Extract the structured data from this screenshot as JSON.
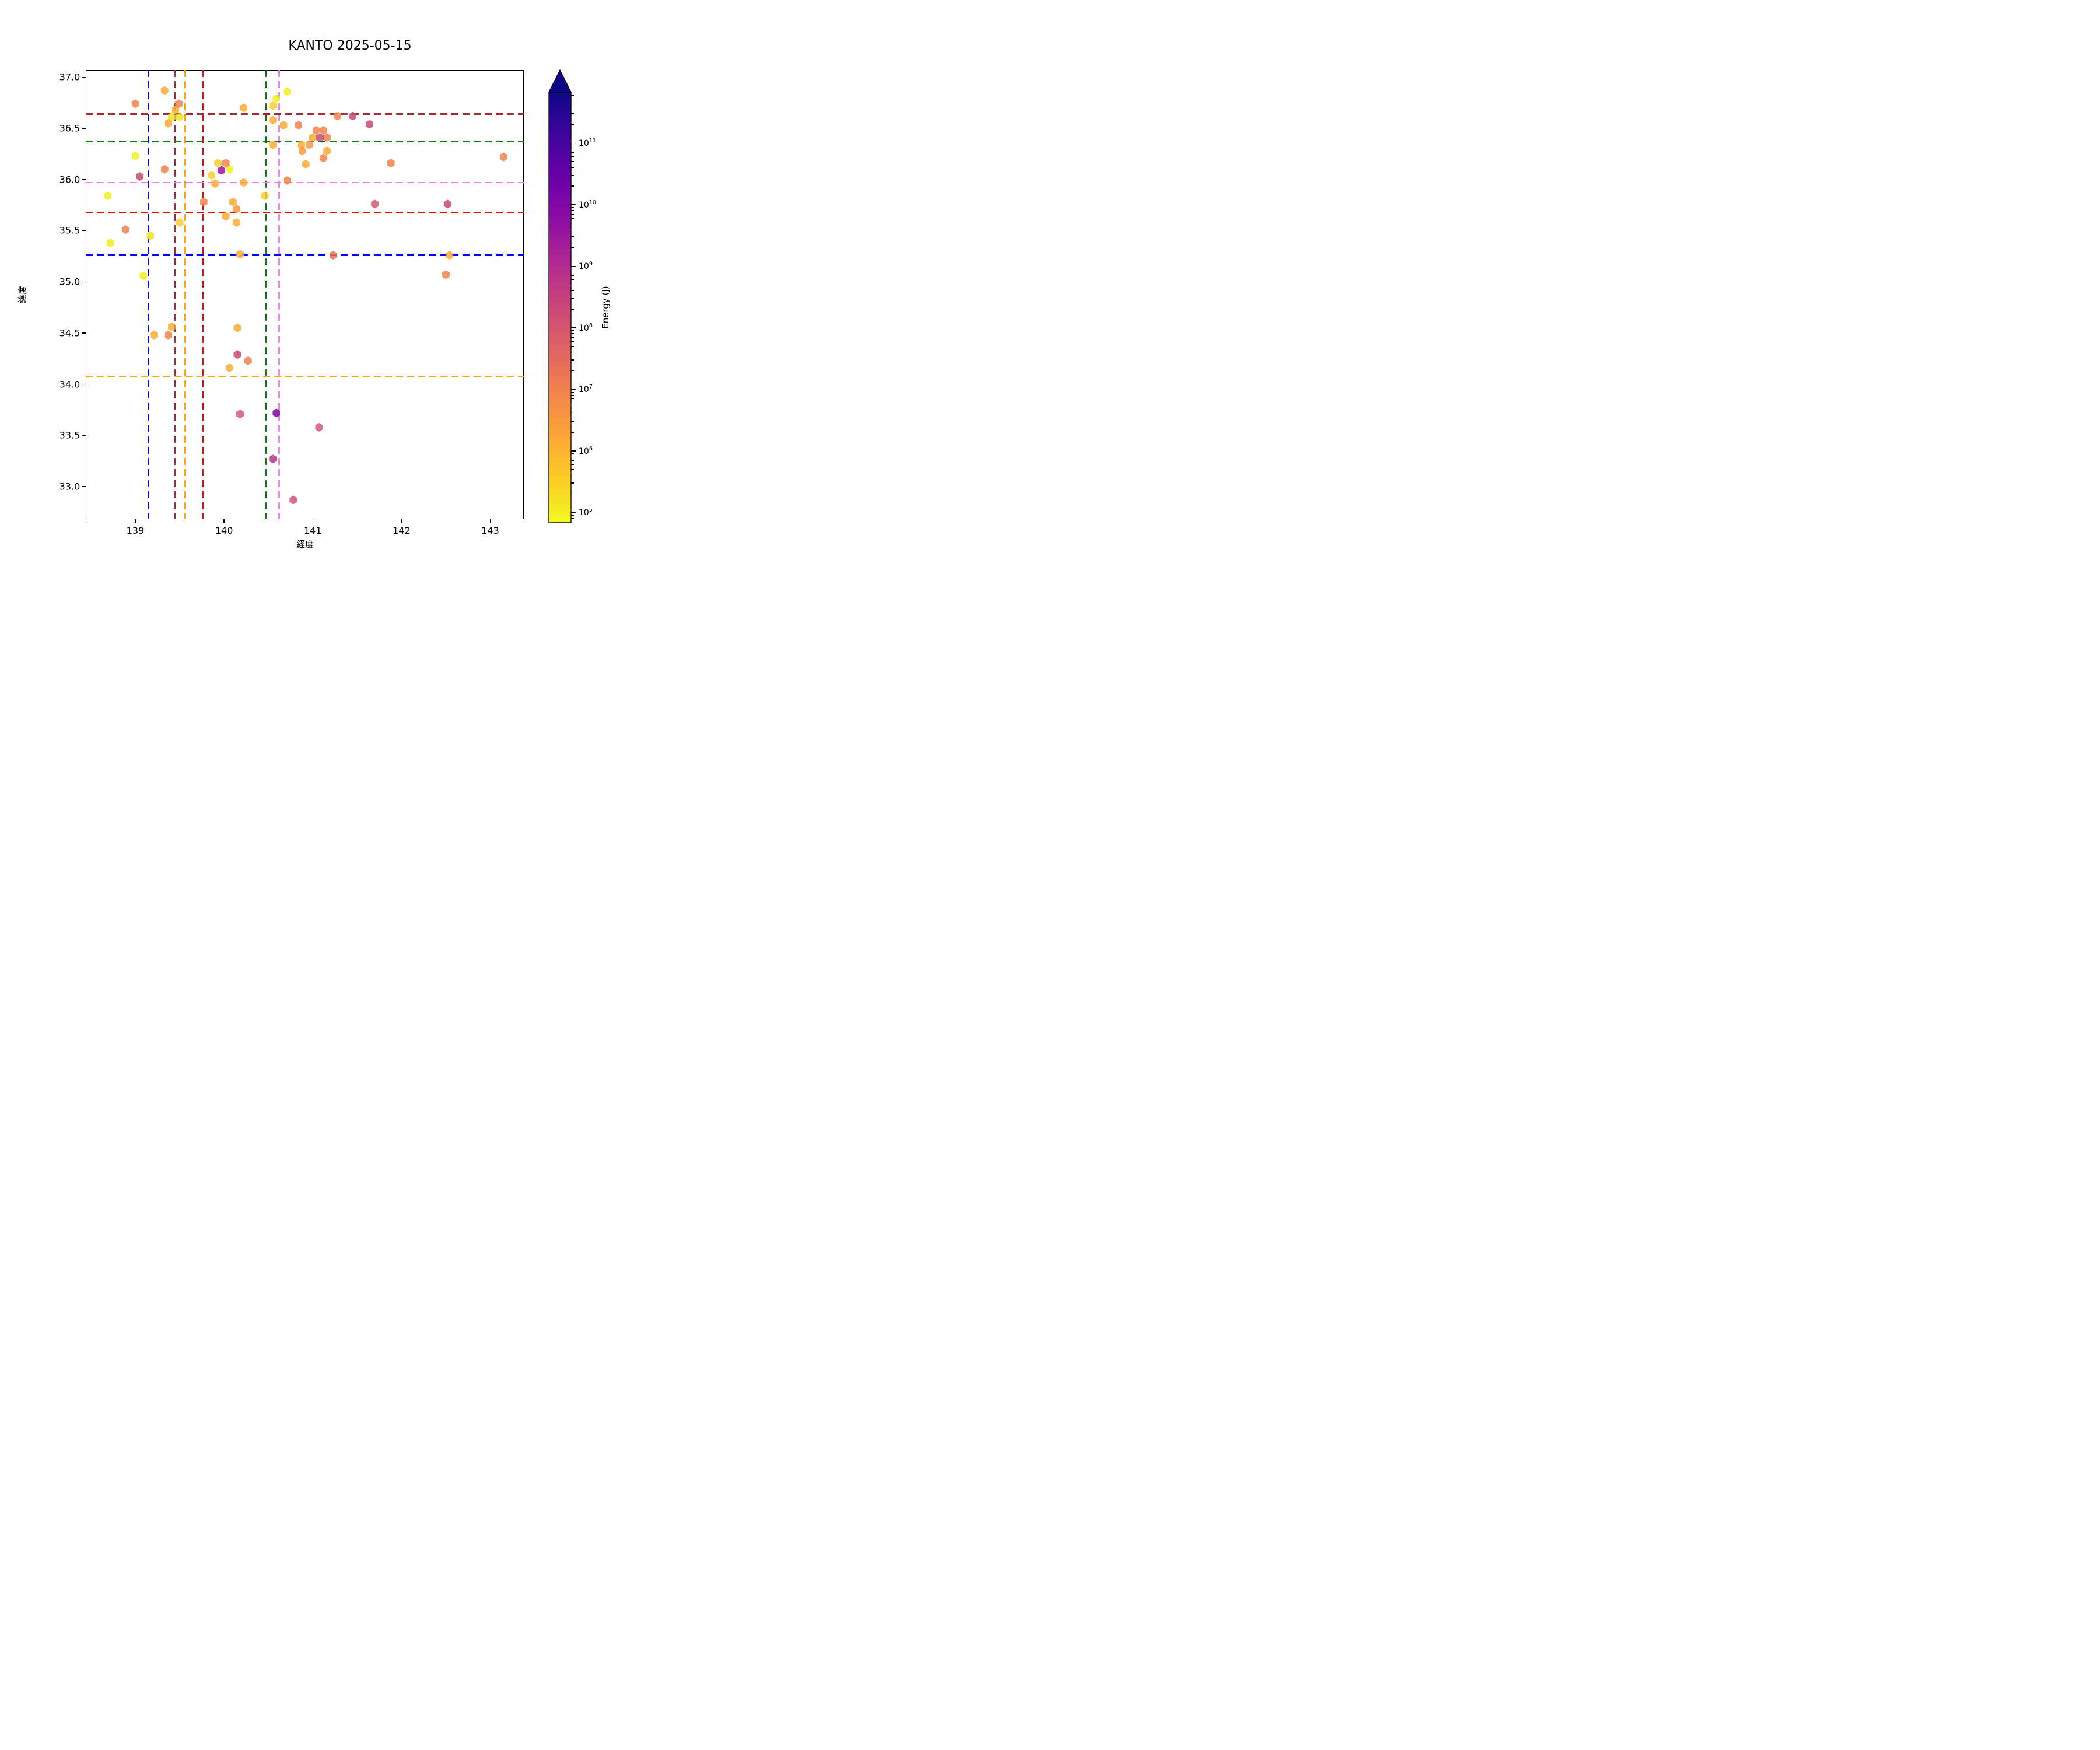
{
  "title": "KANTO 2025-05-15",
  "chart_data": {
    "type": "scatter",
    "marker": "hexagon",
    "title": "KANTO 2025-05-15",
    "xlabel": "経度",
    "ylabel": "緯度",
    "xlim": [
      138.443,
      143.38
    ],
    "ylim": [
      32.68,
      37.07
    ],
    "x_ticks": [
      139,
      140,
      141,
      142,
      143
    ],
    "x_tick_labels": [
      "139",
      "140",
      "141",
      "142",
      "143"
    ],
    "y_ticks": [
      37.0,
      36.5,
      36.0,
      35.5,
      35.0,
      34.5,
      34.0,
      33.5,
      33.0
    ],
    "y_tick_labels": [
      "37.0",
      "36.5",
      "36.0",
      "35.5",
      "35.0",
      "34.5",
      "34.0",
      "33.5",
      "33.0"
    ],
    "grid": false,
    "palette": {
      "yellow": "#f1ee1d",
      "yellow-deep": "#f2e320",
      "golden": "#f9cb32",
      "amber": "#fcab33",
      "orange-amber": "#f9993f",
      "orange": "#f0824c",
      "deep-orange": "#e8724f",
      "rose": "#d25873",
      "crimson": "#c64a72",
      "magenta": "#b43589",
      "purple": "#9c119e",
      "dark-purple": "#7d08a6"
    },
    "energy_j_by_class": {
      "yellow": 90000.0,
      "yellow-deep": 160000.0,
      "golden": 400000.0,
      "amber": 1500000.0,
      "orange-amber": 3500000.0,
      "orange": 10000000.0,
      "deep-orange": 16000000.0,
      "rose": 100000000.0,
      "crimson": 220000000.0,
      "magenta": 700000000.0,
      "purple": 3000000000.0,
      "dark-purple": 12000000000.0
    },
    "points": [
      {
        "lon": 139.0,
        "lat": 36.23,
        "c": "yellow"
      },
      {
        "lon": 140.71,
        "lat": 36.86,
        "c": "yellow"
      },
      {
        "lon": 140.59,
        "lat": 36.79,
        "c": "yellow"
      },
      {
        "lon": 140.06,
        "lat": 36.1,
        "c": "yellow"
      },
      {
        "lon": 138.69,
        "lat": 35.84,
        "c": "yellow"
      },
      {
        "lon": 138.72,
        "lat": 35.38,
        "c": "yellow"
      },
      {
        "lon": 139.09,
        "lat": 35.06,
        "c": "yellow"
      },
      {
        "lon": 139.41,
        "lat": 36.61,
        "c": "yellow-deep"
      },
      {
        "lon": 139.5,
        "lat": 36.61,
        "c": "yellow-deep"
      },
      {
        "lon": 139.17,
        "lat": 35.45,
        "c": "yellow-deep"
      },
      {
        "lon": 140.55,
        "lat": 36.72,
        "c": "golden"
      },
      {
        "lon": 139.93,
        "lat": 36.16,
        "c": "golden"
      },
      {
        "lon": 139.86,
        "lat": 36.04,
        "c": "golden"
      },
      {
        "lon": 139.5,
        "lat": 35.58,
        "c": "golden"
      },
      {
        "lon": 140.46,
        "lat": 35.84,
        "c": "golden"
      },
      {
        "lon": 139.33,
        "lat": 36.87,
        "c": "amber"
      },
      {
        "lon": 139.45,
        "lat": 36.68,
        "c": "amber"
      },
      {
        "lon": 139.37,
        "lat": 36.55,
        "c": "amber"
      },
      {
        "lon": 140.55,
        "lat": 36.58,
        "c": "amber"
      },
      {
        "lon": 140.22,
        "lat": 36.7,
        "c": "amber"
      },
      {
        "lon": 140.67,
        "lat": 36.53,
        "c": "amber"
      },
      {
        "lon": 141.0,
        "lat": 36.41,
        "c": "amber"
      },
      {
        "lon": 140.55,
        "lat": 36.34,
        "c": "amber"
      },
      {
        "lon": 140.87,
        "lat": 36.34,
        "c": "amber"
      },
      {
        "lon": 141.16,
        "lat": 36.28,
        "c": "amber"
      },
      {
        "lon": 140.92,
        "lat": 36.15,
        "c": "amber"
      },
      {
        "lon": 139.9,
        "lat": 35.96,
        "c": "amber"
      },
      {
        "lon": 140.22,
        "lat": 35.97,
        "c": "amber"
      },
      {
        "lon": 140.1,
        "lat": 35.78,
        "c": "amber"
      },
      {
        "lon": 140.02,
        "lat": 35.64,
        "c": "amber"
      },
      {
        "lon": 140.14,
        "lat": 35.58,
        "c": "amber"
      },
      {
        "lon": 140.18,
        "lat": 35.27,
        "c": "amber"
      },
      {
        "lon": 139.21,
        "lat": 34.48,
        "c": "amber"
      },
      {
        "lon": 139.41,
        "lat": 34.56,
        "c": "amber"
      },
      {
        "lon": 140.15,
        "lat": 34.55,
        "c": "amber"
      },
      {
        "lon": 140.06,
        "lat": 34.16,
        "c": "amber"
      },
      {
        "lon": 142.54,
        "lat": 35.26,
        "c": "amber"
      },
      {
        "lon": 140.88,
        "lat": 36.28,
        "c": "orange-amber"
      },
      {
        "lon": 140.14,
        "lat": 35.71,
        "c": "orange-amber"
      },
      {
        "lon": 140.96,
        "lat": 36.34,
        "c": "orange-amber"
      },
      {
        "lon": 139.0,
        "lat": 36.74,
        "c": "orange"
      },
      {
        "lon": 139.49,
        "lat": 36.74,
        "c": "orange"
      },
      {
        "lon": 140.84,
        "lat": 36.53,
        "c": "orange"
      },
      {
        "lon": 141.04,
        "lat": 36.48,
        "c": "orange"
      },
      {
        "lon": 141.12,
        "lat": 36.48,
        "c": "orange"
      },
      {
        "lon": 141.16,
        "lat": 36.41,
        "c": "orange"
      },
      {
        "lon": 141.12,
        "lat": 36.21,
        "c": "orange"
      },
      {
        "lon": 140.71,
        "lat": 35.99,
        "c": "orange"
      },
      {
        "lon": 141.28,
        "lat": 36.62,
        "c": "orange"
      },
      {
        "lon": 140.02,
        "lat": 36.16,
        "c": "orange"
      },
      {
        "lon": 139.77,
        "lat": 35.78,
        "c": "orange"
      },
      {
        "lon": 138.89,
        "lat": 35.51,
        "c": "orange"
      },
      {
        "lon": 139.37,
        "lat": 34.48,
        "c": "orange"
      },
      {
        "lon": 140.27,
        "lat": 34.23,
        "c": "orange"
      },
      {
        "lon": 141.88,
        "lat": 36.16,
        "c": "orange"
      },
      {
        "lon": 143.15,
        "lat": 36.22,
        "c": "orange"
      },
      {
        "lon": 142.5,
        "lat": 35.07,
        "c": "orange"
      },
      {
        "lon": 139.33,
        "lat": 36.1,
        "c": "orange"
      },
      {
        "lon": 141.23,
        "lat": 35.26,
        "c": "deep-orange"
      },
      {
        "lon": 140.18,
        "lat": 33.71,
        "c": "rose"
      },
      {
        "lon": 141.07,
        "lat": 33.58,
        "c": "rose"
      },
      {
        "lon": 140.78,
        "lat": 32.87,
        "c": "rose"
      },
      {
        "lon": 141.7,
        "lat": 35.76,
        "c": "rose"
      },
      {
        "lon": 141.08,
        "lat": 36.41,
        "c": "crimson"
      },
      {
        "lon": 141.45,
        "lat": 36.62,
        "c": "crimson"
      },
      {
        "lon": 139.05,
        "lat": 36.03,
        "c": "crimson"
      },
      {
        "lon": 140.15,
        "lat": 34.29,
        "c": "crimson"
      },
      {
        "lon": 141.64,
        "lat": 36.54,
        "c": "crimson"
      },
      {
        "lon": 142.52,
        "lat": 35.76,
        "c": "crimson"
      },
      {
        "lon": 140.55,
        "lat": 33.27,
        "c": "magenta"
      },
      {
        "lon": 139.97,
        "lat": 36.09,
        "c": "purple"
      },
      {
        "lon": 140.59,
        "lat": 33.72,
        "c": "dark-purple"
      }
    ],
    "reference_lines": {
      "vertical": [
        {
          "lon": 139.15,
          "color": "#0000ff"
        },
        {
          "lon": 139.447,
          "color": "#a52a2a"
        },
        {
          "lon": 139.557,
          "color": "#ffa500"
        },
        {
          "lon": 139.765,
          "color": "#ff0000"
        },
        {
          "lon": 140.47,
          "color": "#008000"
        },
        {
          "lon": 140.62,
          "color": "#ee82ee"
        }
      ],
      "horizontal": [
        {
          "lat": 36.64,
          "color": "#a52a2a"
        },
        {
          "lat": 36.37,
          "color": "#008000"
        },
        {
          "lat": 35.97,
          "color": "#ee82ee"
        },
        {
          "lat": 35.68,
          "color": "#ff0000"
        },
        {
          "lat": 35.26,
          "color": "#0000ff"
        },
        {
          "lat": 34.08,
          "color": "#ffa500"
        }
      ]
    },
    "colorbar": {
      "label": "Energy (J)",
      "scale": "log",
      "major_tick_exponents": [
        11,
        10,
        9,
        8,
        7,
        6,
        5
      ],
      "top_exponent": 11.83,
      "bottom_exponent": 4.83,
      "extend": "max",
      "gradient_top_to_bottom": [
        "#0d0887",
        "#41049d",
        "#6a00a8",
        "#8f0da4",
        "#b12a90",
        "#cc4778",
        "#e16462",
        "#f2844b",
        "#fca636",
        "#fccd25",
        "#f0f921"
      ]
    }
  }
}
